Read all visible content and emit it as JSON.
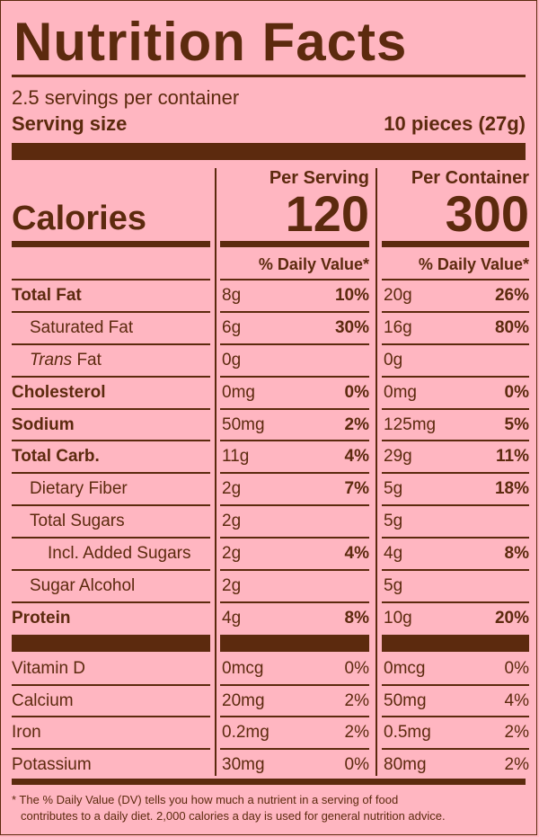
{
  "title": "Nutrition Facts",
  "servings_per_container": "2.5 servings per container",
  "serving_size_label": "Serving size",
  "serving_size_value": "10 pieces (27g)",
  "calories_label": "Calories",
  "per_serving_header": "Per Serving",
  "per_container_header": "Per Container",
  "calories_per_serving": "120",
  "calories_per_container": "300",
  "daily_value_header": "% Daily Value*",
  "nutrients": [
    {
      "name": "Total Fat",
      "bold": true,
      "indent": 0,
      "s_amt": "8g",
      "s_dv": "10%",
      "c_amt": "20g",
      "c_dv": "26%"
    },
    {
      "name": "Saturated Fat",
      "bold": false,
      "indent": 1,
      "s_amt": "6g",
      "s_dv": "30%",
      "c_amt": "16g",
      "c_dv": "80%"
    },
    {
      "name": "Trans Fat",
      "bold": false,
      "indent": 1,
      "italic_prefix": "Trans",
      "rest": " Fat",
      "s_amt": "0g",
      "s_dv": "",
      "c_amt": "0g",
      "c_dv": ""
    },
    {
      "name": "Cholesterol",
      "bold": true,
      "indent": 0,
      "s_amt": "0mg",
      "s_dv": "0%",
      "c_amt": "0mg",
      "c_dv": "0%"
    },
    {
      "name": "Sodium",
      "bold": true,
      "indent": 0,
      "s_amt": "50mg",
      "s_dv": "2%",
      "c_amt": "125mg",
      "c_dv": "5%"
    },
    {
      "name": "Total Carb.",
      "bold": true,
      "indent": 0,
      "s_amt": "11g",
      "s_dv": "4%",
      "c_amt": "29g",
      "c_dv": "11%"
    },
    {
      "name": "Dietary Fiber",
      "bold": false,
      "indent": 1,
      "s_amt": "2g",
      "s_dv": "7%",
      "c_amt": "5g",
      "c_dv": "18%"
    },
    {
      "name": "Total Sugars",
      "bold": false,
      "indent": 1,
      "s_amt": "2g",
      "s_dv": "",
      "c_amt": "5g",
      "c_dv": ""
    },
    {
      "name": "Incl. Added Sugars",
      "bold": false,
      "indent": 2,
      "s_amt": "2g",
      "s_dv": "4%",
      "c_amt": "4g",
      "c_dv": "8%"
    },
    {
      "name": "Sugar Alcohol",
      "bold": false,
      "indent": 1,
      "s_amt": "2g",
      "s_dv": "",
      "c_amt": "5g",
      "c_dv": ""
    },
    {
      "name": "Protein",
      "bold": true,
      "indent": 0,
      "s_amt": "4g",
      "s_dv": "8%",
      "c_amt": "10g",
      "c_dv": "20%"
    }
  ],
  "vitamins": [
    {
      "name": "Vitamin D",
      "s_amt": "0mcg",
      "s_dv": "0%",
      "c_amt": "0mcg",
      "c_dv": "0%"
    },
    {
      "name": "Calcium",
      "s_amt": "20mg",
      "s_dv": "2%",
      "c_amt": "50mg",
      "c_dv": "4%"
    },
    {
      "name": "Iron",
      "s_amt": "0.2mg",
      "s_dv": "2%",
      "c_amt": "0.5mg",
      "c_dv": "2%"
    },
    {
      "name": "Potassium",
      "s_amt": "30mg",
      "s_dv": "0%",
      "c_amt": "80mg",
      "c_dv": "2%"
    }
  ],
  "footnote_line1": "* The % Daily Value (DV) tells you how much a nutrient in a serving of food",
  "footnote_line2": "contributes to a daily diet. 2,000 calories a day is used for general nutrition advice.",
  "colors": {
    "background": "#ffb6c1",
    "ink": "#5c2a0e"
  }
}
